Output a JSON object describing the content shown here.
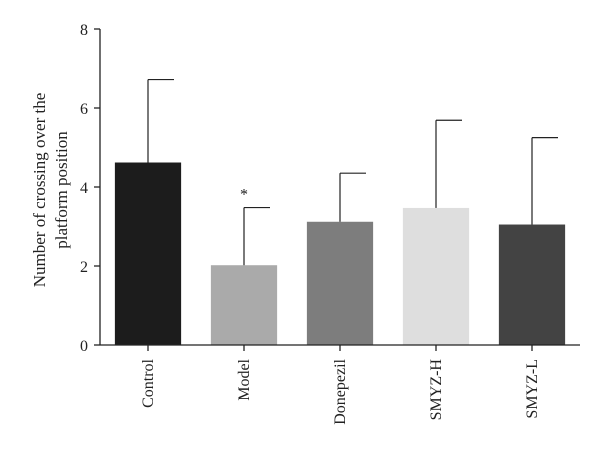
{
  "chart_data": {
    "type": "bar",
    "title": "",
    "xlabel": "",
    "ylabel_lines": [
      "Number of crossing over the",
      "platform position"
    ],
    "ylim": [
      0,
      8
    ],
    "yticks": [
      0,
      2,
      4,
      6,
      8
    ],
    "categories": [
      "Control",
      "Model",
      "Donepezil",
      "SMYZ-H",
      "SMYZ-L"
    ],
    "values": [
      4.62,
      2.02,
      3.12,
      3.47,
      3.05
    ],
    "error_upper": [
      2.1,
      1.46,
      1.23,
      2.22,
      2.2
    ],
    "colors": [
      "#1c1c1c",
      "#aaaaaa",
      "#7d7d7d",
      "#dedede",
      "#434343"
    ],
    "annotations": [
      {
        "category": "Model",
        "text": "*"
      }
    ],
    "grid": false,
    "legend": "none"
  }
}
